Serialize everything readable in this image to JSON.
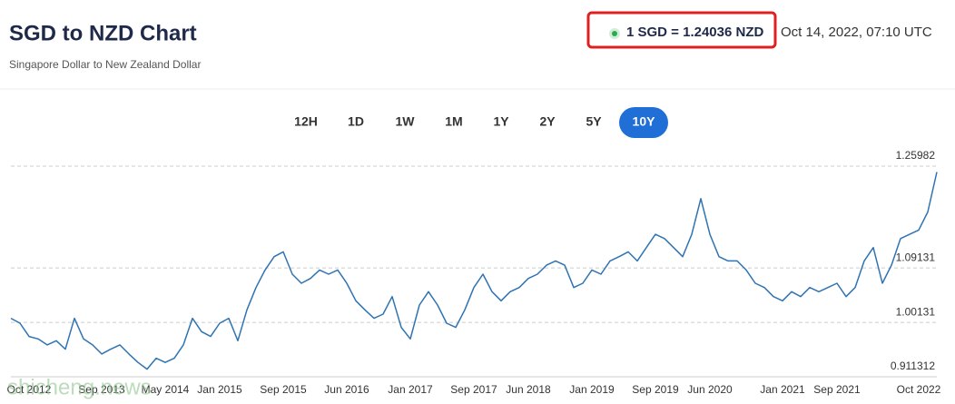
{
  "header": {
    "title": "SGD to NZD Chart",
    "subtitle": "Singapore Dollar to New Zealand Dollar",
    "rate": "1 SGD = 1.24036 NZD",
    "timestamp": "Oct 14, 2022, 07:10 UTC"
  },
  "ranges": [
    "12H",
    "1D",
    "1W",
    "1M",
    "1Y",
    "2Y",
    "5Y",
    "10Y"
  ],
  "active_range": "10Y",
  "watermark": "shicheng.news",
  "chart_data": {
    "type": "line",
    "color": "#2f73b3",
    "grid": true,
    "ylim": [
      0.911312,
      1.25982
    ],
    "yticks": [
      0.911312,
      1.00131,
      1.09131,
      1.25982
    ],
    "categories": [
      null,
      null,
      "Oct 2012",
      null,
      null,
      null,
      null,
      null,
      null,
      null,
      "Sep 2013",
      null,
      null,
      null,
      null,
      null,
      null,
      "May 2014",
      null,
      null,
      null,
      null,
      null,
      "Jan 2015",
      null,
      null,
      null,
      null,
      null,
      null,
      "Sep 2015",
      null,
      null,
      null,
      null,
      null,
      null,
      "Jun 2016",
      null,
      null,
      null,
      null,
      null,
      null,
      "Jan 2017",
      null,
      null,
      null,
      null,
      null,
      null,
      "Sep 2017",
      null,
      null,
      null,
      null,
      null,
      "Jun 2018",
      null,
      null,
      null,
      null,
      null,
      null,
      "Jan 2019",
      null,
      null,
      null,
      null,
      null,
      null,
      "Sep 2019",
      null,
      null,
      null,
      null,
      null,
      "Jun 2020",
      null,
      null,
      null,
      null,
      null,
      null,
      null,
      "Jan 2021",
      null,
      null,
      null,
      null,
      null,
      "Sep 2021",
      null,
      null,
      null,
      null,
      null,
      null,
      null,
      null,
      "Oct 2022",
      null,
      null
    ],
    "values": [
      1.008,
      1.0,
      0.978,
      0.974,
      0.964,
      0.971,
      0.957,
      1.008,
      0.974,
      0.964,
      0.949,
      0.957,
      0.964,
      0.949,
      0.935,
      0.924,
      0.942,
      0.935,
      0.942,
      0.964,
      1.008,
      0.986,
      0.978,
      1.0,
      1.008,
      0.971,
      1.022,
      1.059,
      1.088,
      1.11,
      1.118,
      1.081,
      1.066,
      1.074,
      1.088,
      1.081,
      1.088,
      1.066,
      1.037,
      1.022,
      1.008,
      1.015,
      1.044,
      0.993,
      0.974,
      1.03,
      1.052,
      1.03,
      1.0,
      0.993,
      1.022,
      1.059,
      1.081,
      1.052,
      1.037,
      1.052,
      1.059,
      1.074,
      1.081,
      1.096,
      1.103,
      1.096,
      1.059,
      1.066,
      1.088,
      1.081,
      1.103,
      1.11,
      1.118,
      1.103,
      1.125,
      1.147,
      1.14,
      1.125,
      1.11,
      1.147,
      1.206,
      1.147,
      1.11,
      1.103,
      1.103,
      1.088,
      1.066,
      1.059,
      1.044,
      1.037,
      1.052,
      1.044,
      1.059,
      1.052,
      1.059,
      1.066,
      1.044,
      1.059,
      1.103,
      1.125,
      1.066,
      1.096,
      1.14,
      1.147,
      1.154,
      1.184,
      1.25
    ]
  }
}
